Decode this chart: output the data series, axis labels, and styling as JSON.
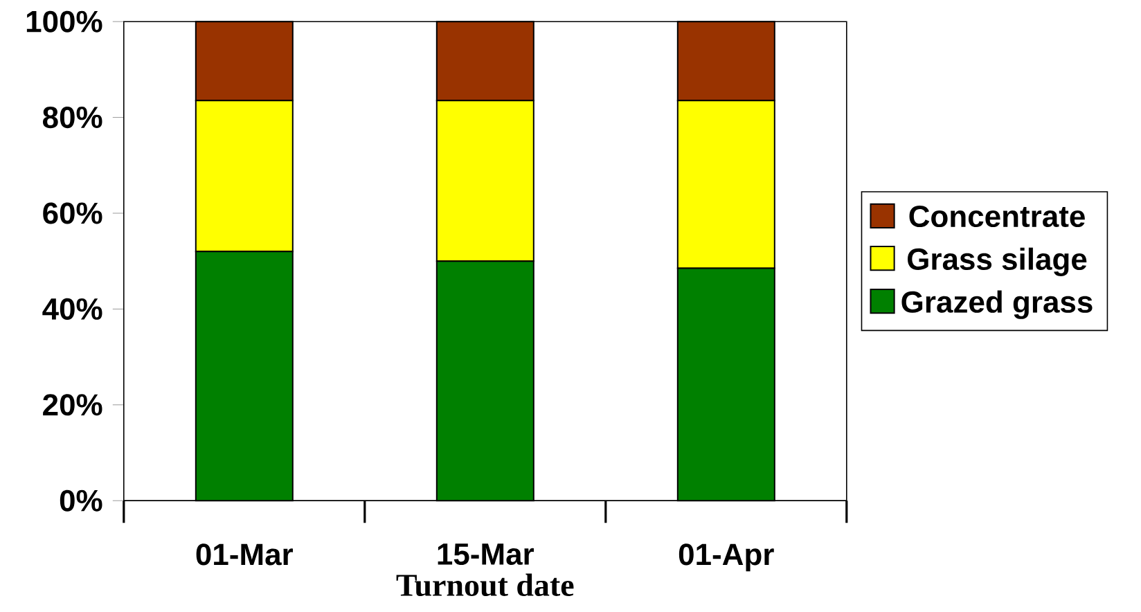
{
  "chart_data": {
    "type": "bar",
    "stacked": true,
    "xlabel": "Turnout date",
    "categories": [
      "01-Mar",
      "15-Mar",
      "01-Apr"
    ],
    "series": [
      {
        "name": "Grazed grass",
        "color": "#008000",
        "values": [
          52,
          50,
          48.5
        ]
      },
      {
        "name": "Grass silage",
        "color": "#ffff00",
        "values": [
          31.5,
          33.5,
          35
        ]
      },
      {
        "name": "Concentrate",
        "color": "#993300",
        "values": [
          16.5,
          16.5,
          16.5
        ]
      }
    ],
    "ylim": [
      0,
      100
    ],
    "yticks": [
      {
        "value": 0,
        "label": "0%"
      },
      {
        "value": 20,
        "label": "20%"
      },
      {
        "value": 40,
        "label": "40%"
      },
      {
        "value": 60,
        "label": "60%"
      },
      {
        "value": 80,
        "label": "80%"
      },
      {
        "value": 100,
        "label": "100%"
      }
    ],
    "grid": false,
    "legend": "right"
  }
}
